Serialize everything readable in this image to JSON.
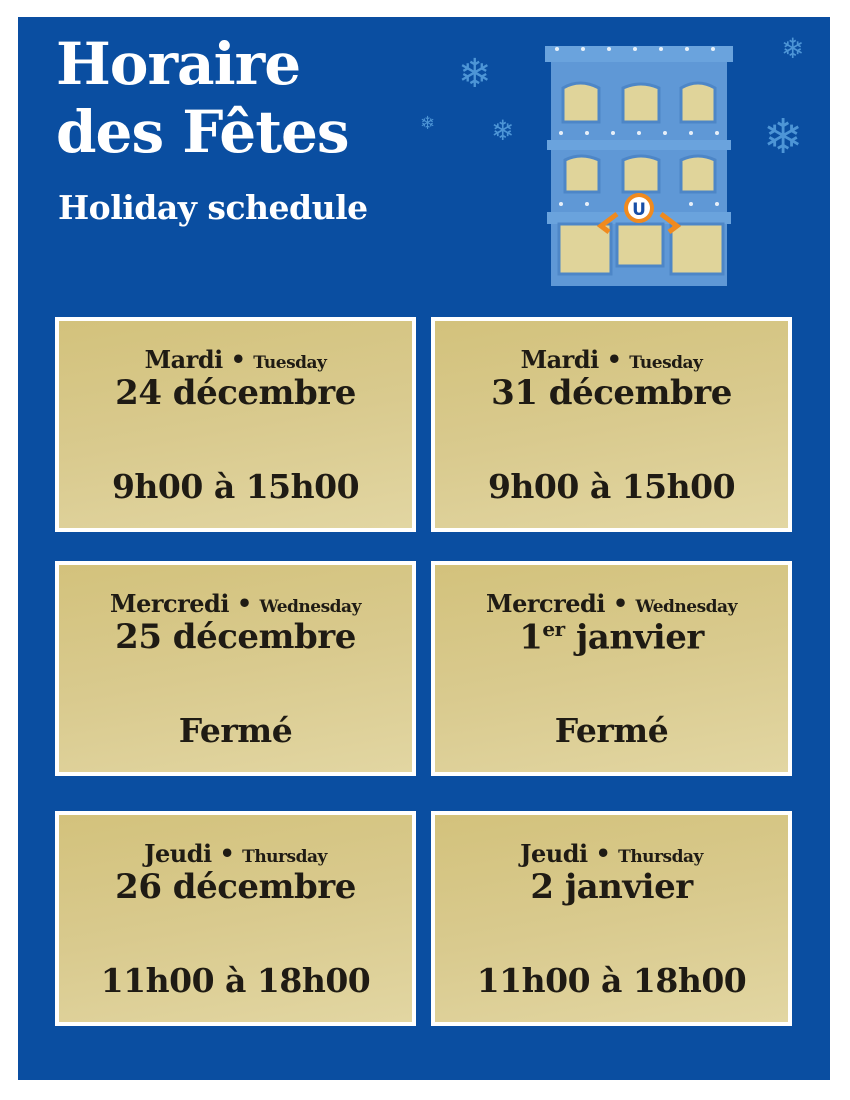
{
  "header": {
    "title_line1": "Horaire",
    "title_line2": "des Fêtes",
    "subtitle": "Holiday schedule"
  },
  "colors": {
    "background": "#0a4ea1",
    "card": "#d9ca8e",
    "text": "#1f1b14",
    "snowflake": "#4d95d6"
  },
  "illustration": {
    "logo_letter": "U",
    "icons": [
      "building-icon",
      "snowflake-icon",
      "ribbon-bow-icon"
    ]
  },
  "schedule": [
    {
      "day_fr": "Mardi",
      "day_en": "Tuesday",
      "date": "24 décembre",
      "date_sup": "",
      "hours": "9h00 à 15h00"
    },
    {
      "day_fr": "Mardi",
      "day_en": "Tuesday",
      "date": "31 décembre",
      "date_sup": "",
      "hours": "9h00 à 15h00"
    },
    {
      "day_fr": "Mercredi",
      "day_en": "Wednesday",
      "date": "25 décembre",
      "date_sup": "",
      "hours": "Fermé"
    },
    {
      "day_fr": "Mercredi",
      "day_en": "Wednesday",
      "date_num": "1",
      "date_sup": "er",
      "date": " janvier",
      "hours": "Fermé"
    },
    {
      "day_fr": "Jeudi",
      "day_en": "Thursday",
      "date": "26 décembre",
      "date_sup": "",
      "hours": "11h00 à 18h00"
    },
    {
      "day_fr": "Jeudi",
      "day_en": "Thursday",
      "date": "2 janvier",
      "date_sup": "",
      "hours": "11h00 à 18h00"
    }
  ],
  "separator": "•"
}
